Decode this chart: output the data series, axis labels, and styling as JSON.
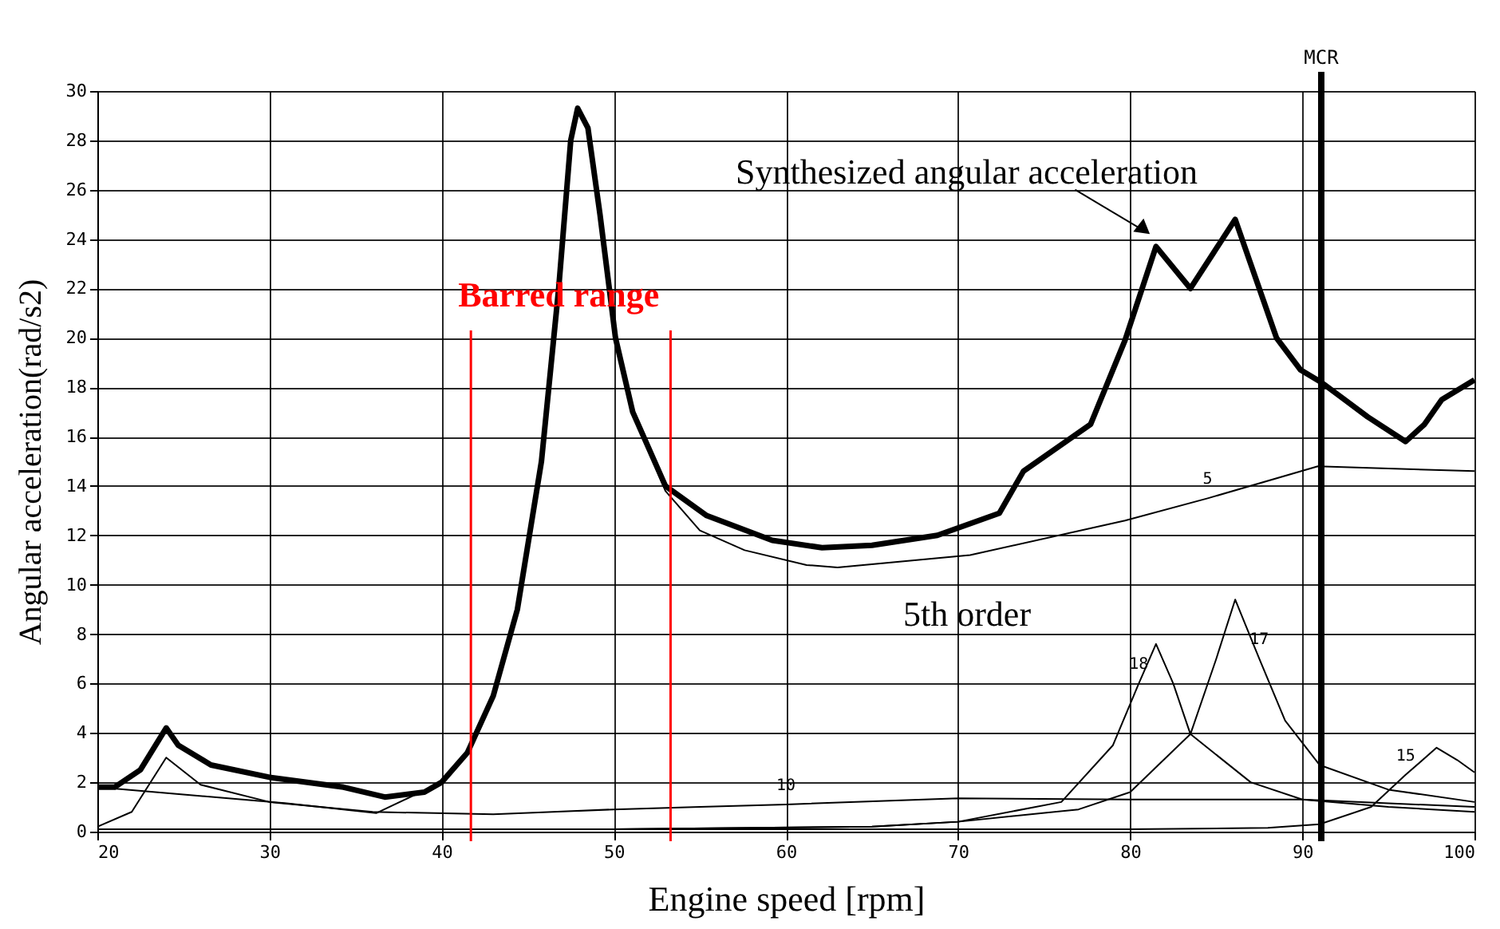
{
  "chart_data": {
    "type": "line",
    "xlabel": "Engine speed [rpm]",
    "ylabel": "Angular acceleration(rad/s2)",
    "xlim": [
      20,
      100
    ],
    "ylim": [
      0,
      30
    ],
    "xticks": [
      20,
      30,
      40,
      50,
      60,
      70,
      80,
      90,
      100
    ],
    "yticks": [
      0,
      2,
      4,
      6,
      8,
      10,
      12,
      14,
      16,
      18,
      20,
      22,
      24,
      26,
      28,
      30
    ],
    "grid": true,
    "legend": false,
    "marker": "none",
    "line_style": "solid",
    "series": [
      {
        "color": "#000000",
        "x": [
          20,
          21,
          22.5,
          24,
          24.7,
          26.6,
          30,
          34.3,
          36.7,
          39,
          40,
          41.5,
          43,
          44.4,
          45.8,
          46.8,
          47.5,
          47.9,
          48.5,
          49.2,
          50.1,
          51.1,
          53,
          55.4,
          59.2,
          62.1,
          65,
          68.8,
          72.4,
          73.8,
          77.7,
          79.7,
          81.5,
          83.5,
          86.1,
          87,
          88.5,
          89.9,
          91.1,
          93.8,
          96,
          97.1,
          98.1,
          100
        ],
        "values": [
          1.8,
          1.8,
          2.5,
          4.2,
          3.5,
          2.7,
          2.2,
          1.8,
          1.4,
          1.6,
          2.0,
          3.2,
          5.5,
          9,
          15,
          22,
          28,
          29.3,
          28.5,
          25,
          20,
          17,
          14,
          12.8,
          11.8,
          11.5,
          11.6,
          12.0,
          12.9,
          14.6,
          16.5,
          19.9,
          23.7,
          22.0,
          24.8,
          23,
          20,
          18.7,
          18.2,
          16.8,
          15.8,
          16.5,
          17.5,
          18.3
        ]
      },
      {
        "name": "5",
        "color": "#000000",
        "x": [
          20,
          25,
          31,
          36.2,
          40,
          41.5,
          43,
          44.4,
          45.8,
          46.8,
          47.5,
          47.9,
          48.5,
          49.2,
          50.1,
          51.1,
          53,
          55,
          57.6,
          61.2,
          63,
          70.7,
          79.7,
          84.5,
          90.9,
          100
        ],
        "values": [
          1.8,
          1.5,
          1.15,
          0.75,
          2.0,
          3.2,
          5.5,
          9,
          15,
          22,
          28,
          29.3,
          28.5,
          25,
          20,
          17,
          13.8,
          12.2,
          11.4,
          10.8,
          10.7,
          11.2,
          12.6,
          13.5,
          14.8,
          14.6
        ]
      },
      {
        "name": "10",
        "color": "#000000",
        "x": [
          20,
          22,
          24,
          26,
          30,
          36,
          43,
          50,
          55,
          60,
          70,
          80,
          90,
          100
        ],
        "values": [
          0.2,
          0.8,
          3.0,
          1.9,
          1.2,
          0.8,
          0.7,
          0.9,
          1.0,
          1.1,
          1.35,
          1.3,
          1.3,
          1.0
        ]
      },
      {
        "name": "15",
        "color": "#000000",
        "x": [
          20,
          40,
          60,
          70,
          80,
          88,
          91,
          94,
          96,
          97.8,
          99,
          100
        ],
        "values": [
          0.1,
          0.1,
          0.1,
          0.1,
          0.1,
          0.15,
          0.3,
          1.0,
          2.3,
          3.4,
          2.9,
          2.4
        ]
      },
      {
        "name": "17",
        "color": "#000000",
        "x": [
          20,
          50,
          65,
          70,
          77,
          80,
          83.5,
          85,
          86.1,
          87.5,
          89,
          91,
          95,
          100
        ],
        "values": [
          0.1,
          0.1,
          0.2,
          0.4,
          0.9,
          1.6,
          3.95,
          7.0,
          9.4,
          7.0,
          4.5,
          2.7,
          1.7,
          1.2
        ]
      },
      {
        "name": "18",
        "color": "#000000",
        "x": [
          20,
          50,
          65,
          70,
          76,
          79,
          80.5,
          81.5,
          82.5,
          83.5,
          87,
          90,
          95,
          100
        ],
        "values": [
          0.1,
          0.1,
          0.2,
          0.4,
          1.2,
          3.5,
          6.0,
          7.6,
          6.0,
          3.95,
          2.0,
          1.3,
          1.0,
          0.8
        ]
      }
    ],
    "ref_lines": [
      {
        "axis": "x",
        "value": 41.7,
        "label": "Barred range",
        "color": "#ff0000"
      },
      {
        "axis": "x",
        "value": 53.3,
        "color": "#ff0000"
      },
      {
        "axis": "x",
        "value": 91.1,
        "label": "MCR",
        "color": "#000000"
      }
    ],
    "annotations": [
      {
        "text": "Synthesized angular acceleration",
        "x": 81.5,
        "y": 23.7
      },
      "5th order"
    ]
  }
}
